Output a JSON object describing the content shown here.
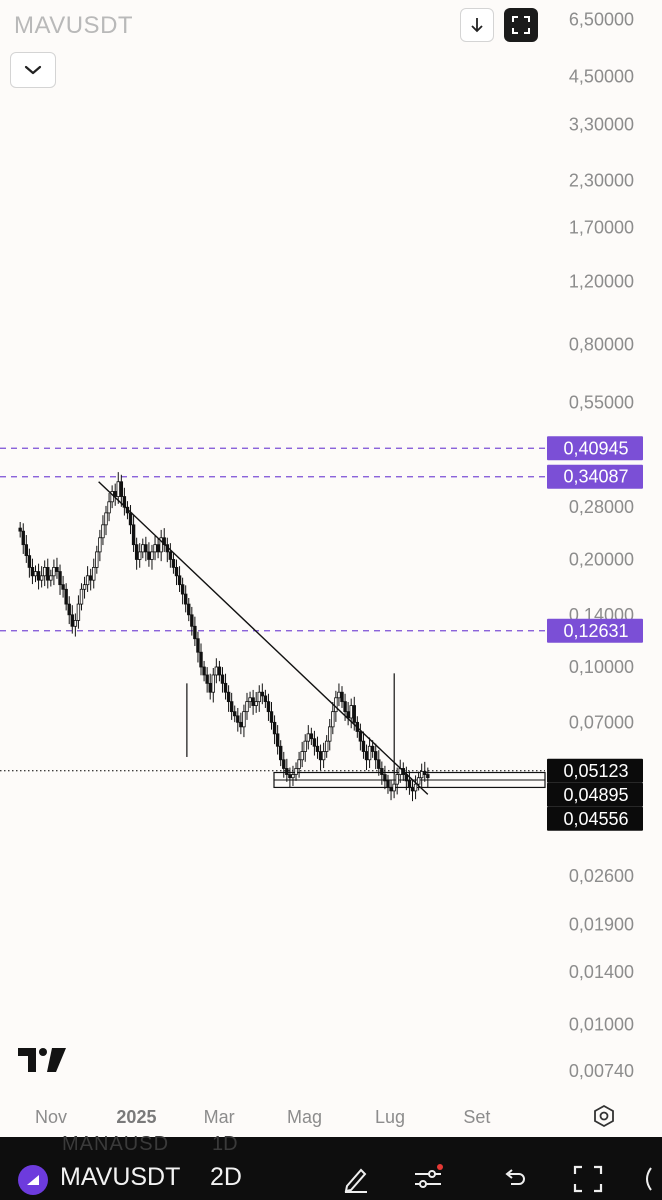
{
  "header": {
    "symbol": "MAVUSDT"
  },
  "chart_data": {
    "type": "candlestick",
    "symbol": "MAVUSDT",
    "y_scale": "log",
    "ylim": [
      0.0065,
      6.5
    ],
    "y_tick_labels": [
      {
        "value": 6.5,
        "label": "6,50000"
      },
      {
        "value": 4.5,
        "label": "4,50000"
      },
      {
        "value": 3.3,
        "label": "3,30000"
      },
      {
        "value": 2.3,
        "label": "2,30000"
      },
      {
        "value": 1.7,
        "label": "1,70000"
      },
      {
        "value": 1.2,
        "label": "1,20000"
      },
      {
        "value": 0.8,
        "label": "0,80000"
      },
      {
        "value": 0.55,
        "label": "0,55000"
      },
      {
        "value": 0.28,
        "label": "0,28000"
      },
      {
        "value": 0.2,
        "label": "0,20000"
      },
      {
        "value": 0.14,
        "label": "0,14000"
      },
      {
        "value": 0.1,
        "label": "0,10000"
      },
      {
        "value": 0.07,
        "label": "0,07000"
      },
      {
        "value": 0.026,
        "label": "0,02600"
      },
      {
        "value": 0.019,
        "label": "0,01900"
      },
      {
        "value": 0.014,
        "label": "0,01400"
      },
      {
        "value": 0.01,
        "label": "0,01000"
      },
      {
        "value": 0.0074,
        "label": "0,00740"
      }
    ],
    "x_tick_labels": [
      {
        "date": "2024-11-01",
        "label": "Nov",
        "bold": false
      },
      {
        "date": "2025-01-01",
        "label": "2025",
        "bold": true
      },
      {
        "date": "2025-03-01",
        "label": "Mar",
        "bold": false
      },
      {
        "date": "2025-05-01",
        "label": "Mag",
        "bold": false
      },
      {
        "date": "2025-07-01",
        "label": "Lug",
        "bold": false
      },
      {
        "date": "2025-09-01",
        "label": "Set",
        "bold": false
      }
    ],
    "xlim": [
      "2024-10-10",
      "2025-10-15"
    ],
    "price_levels": [
      {
        "value": 0.40945,
        "label": "0,40945",
        "style": "dashed",
        "color": "#7b4fd6"
      },
      {
        "value": 0.34087,
        "label": "0,34087",
        "style": "dashed",
        "color": "#7b4fd6"
      },
      {
        "value": 0.12631,
        "label": "0,12631",
        "style": "dashed",
        "color": "#7b4fd6"
      },
      {
        "value": 0.05123,
        "label": "0,05123",
        "style": "dotted",
        "color": "#000000"
      },
      {
        "value": 0.04895,
        "label": "0,04895",
        "style": "box",
        "color": "#000000"
      },
      {
        "value": 0.04556,
        "label": "0,04556",
        "style": "box",
        "color": "#000000"
      }
    ],
    "trendline": {
      "start": {
        "date": "2024-12-05",
        "value": 0.33
      },
      "end": {
        "date": "2025-07-28",
        "value": 0.044
      }
    },
    "candles_close": [
      0.24,
      0.22,
      0.205,
      0.19,
      0.18,
      0.185,
      0.175,
      0.18,
      0.19,
      0.175,
      0.18,
      0.19,
      0.185,
      0.17,
      0.165,
      0.15,
      0.14,
      0.13,
      0.135,
      0.15,
      0.165,
      0.17,
      0.18,
      0.175,
      0.19,
      0.21,
      0.23,
      0.25,
      0.27,
      0.29,
      0.31,
      0.3,
      0.33,
      0.3,
      0.28,
      0.27,
      0.25,
      0.22,
      0.2,
      0.21,
      0.22,
      0.21,
      0.2,
      0.21,
      0.22,
      0.21,
      0.23,
      0.22,
      0.21,
      0.2,
      0.19,
      0.18,
      0.17,
      0.16,
      0.15,
      0.14,
      0.13,
      0.12,
      0.11,
      0.1,
      0.095,
      0.09,
      0.085,
      0.095,
      0.1,
      0.095,
      0.09,
      0.085,
      0.08,
      0.075,
      0.073,
      0.07,
      0.068,
      0.075,
      0.08,
      0.082,
      0.078,
      0.08,
      0.085,
      0.083,
      0.08,
      0.075,
      0.07,
      0.065,
      0.06,
      0.055,
      0.052,
      0.05,
      0.049,
      0.05,
      0.052,
      0.055,
      0.058,
      0.062,
      0.065,
      0.063,
      0.06,
      0.058,
      0.055,
      0.058,
      0.062,
      0.068,
      0.075,
      0.082,
      0.085,
      0.08,
      0.075,
      0.072,
      0.078,
      0.07,
      0.066,
      0.062,
      0.058,
      0.055,
      0.06,
      0.058,
      0.055,
      0.052,
      0.05,
      0.048,
      0.046,
      0.045,
      0.047,
      0.05,
      0.052,
      0.05,
      0.048,
      0.046,
      0.045,
      0.047,
      0.049,
      0.051,
      0.05,
      0.049
    ],
    "candle_dates": [
      "2024-10-10",
      "2025-07-28"
    ],
    "wick_spikes": [
      {
        "date": "2025-02-06",
        "low": 0.056
      },
      {
        "date": "2025-07-04",
        "high": 0.096
      }
    ]
  },
  "toolbar": {
    "symbol": "MAVUSDT",
    "interval": "2D",
    "ghost_symbol": "MANAUSD",
    "ghost_interval": "1D"
  }
}
